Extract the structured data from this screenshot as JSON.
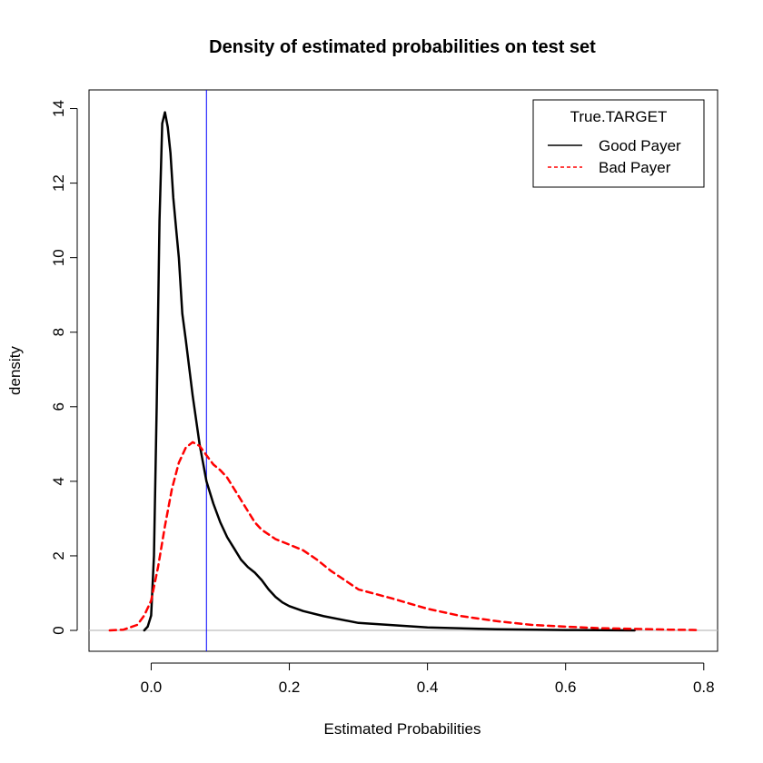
{
  "chart_data": {
    "type": "line",
    "title": "Density of estimated probabilities on test set",
    "xlabel": "Estimated Probabilities",
    "ylabel": "density",
    "xlim": [
      -0.09,
      0.82
    ],
    "ylim": [
      -0.56,
      14.5
    ],
    "x_ticks": [
      0.0,
      0.2,
      0.4,
      0.6,
      0.8
    ],
    "x_tick_labels": [
      "0.0",
      "0.2",
      "0.4",
      "0.6",
      "0.8"
    ],
    "y_ticks": [
      0,
      2,
      4,
      6,
      8,
      10,
      12,
      14
    ],
    "y_tick_labels": [
      "0",
      "2",
      "4",
      "6",
      "8",
      "10",
      "12",
      "14"
    ],
    "vertical_line_x": 0.08,
    "baseline_y": 0,
    "legend": {
      "title": "True.TARGET",
      "position": "top-right",
      "entries": [
        "Good Payer",
        "Bad Payer"
      ]
    },
    "series": [
      {
        "name": "Good Payer",
        "color": "#000000",
        "style": "solid",
        "x": [
          -0.01,
          -0.005,
          0.0,
          0.004,
          0.008,
          0.012,
          0.016,
          0.02,
          0.024,
          0.028,
          0.032,
          0.036,
          0.04,
          0.045,
          0.05,
          0.06,
          0.07,
          0.08,
          0.09,
          0.1,
          0.11,
          0.12,
          0.13,
          0.14,
          0.15,
          0.16,
          0.17,
          0.18,
          0.19,
          0.2,
          0.22,
          0.25,
          0.3,
          0.35,
          0.4,
          0.5,
          0.6,
          0.65,
          0.7
        ],
        "y": [
          0.0,
          0.1,
          0.4,
          2.0,
          6.0,
          11.0,
          13.6,
          13.9,
          13.5,
          12.8,
          11.6,
          10.8,
          10.0,
          8.5,
          7.8,
          6.3,
          5.0,
          4.0,
          3.4,
          2.9,
          2.5,
          2.2,
          1.9,
          1.7,
          1.55,
          1.35,
          1.1,
          0.9,
          0.75,
          0.65,
          0.52,
          0.38,
          0.2,
          0.14,
          0.08,
          0.03,
          0.01,
          0.005,
          0.0
        ]
      },
      {
        "name": "Bad Payer",
        "color": "#ff0000",
        "style": "dashed",
        "x": [
          -0.06,
          -0.04,
          -0.02,
          -0.01,
          0.0,
          0.01,
          0.02,
          0.03,
          0.04,
          0.05,
          0.06,
          0.07,
          0.08,
          0.09,
          0.1,
          0.11,
          0.12,
          0.13,
          0.14,
          0.15,
          0.16,
          0.18,
          0.2,
          0.22,
          0.24,
          0.26,
          0.28,
          0.3,
          0.35,
          0.4,
          0.45,
          0.5,
          0.55,
          0.6,
          0.65,
          0.7,
          0.75,
          0.79
        ],
        "y": [
          0.0,
          0.02,
          0.15,
          0.4,
          0.8,
          1.7,
          2.8,
          3.8,
          4.5,
          4.9,
          5.05,
          4.95,
          4.7,
          4.45,
          4.3,
          4.1,
          3.8,
          3.5,
          3.2,
          2.9,
          2.7,
          2.45,
          2.3,
          2.15,
          1.9,
          1.6,
          1.35,
          1.1,
          0.85,
          0.58,
          0.38,
          0.25,
          0.15,
          0.1,
          0.06,
          0.04,
          0.02,
          0.01
        ]
      }
    ]
  }
}
